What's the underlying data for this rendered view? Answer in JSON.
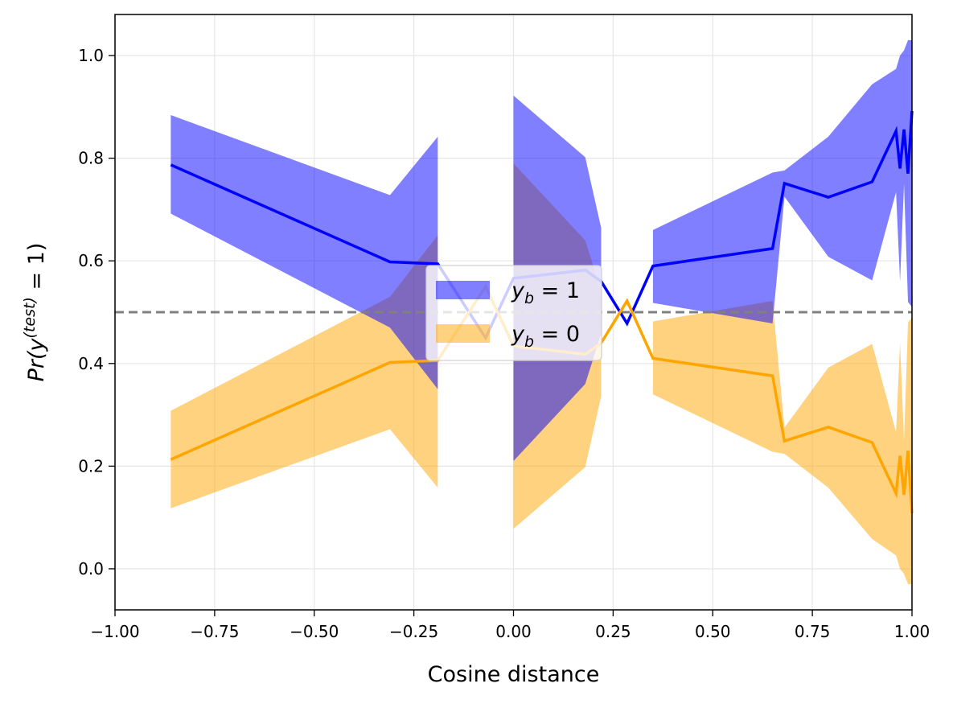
{
  "chart_data": {
    "type": "line",
    "title": "",
    "xlabel": "Cosine distance",
    "ylabel": "Pr(y^(test) = 1)",
    "xlim": [
      -1.0,
      1.0
    ],
    "ylim": [
      -0.08,
      1.08
    ],
    "xticks": [
      "−1.00",
      "−0.75",
      "−0.50",
      "−0.25",
      "0.00",
      "0.25",
      "0.50",
      "0.75",
      "1.00"
    ],
    "yticks": [
      "0.0",
      "0.2",
      "0.4",
      "0.6",
      "0.8",
      "1.0"
    ],
    "grid": true,
    "reference_line": {
      "y": 0.5,
      "style": "dashed",
      "color": "#808080"
    },
    "legend": {
      "placement": "center"
    },
    "series": [
      {
        "name": "y_b = 1",
        "legend_main": "y",
        "legend_sub": "b",
        "legend_rest": " = 1",
        "color": "#0000ff",
        "fill_color": "#8080ff",
        "segments": [
          {
            "x": [
              -0.86,
              -0.31,
              -0.19
            ],
            "y": [
              0.787,
              0.598,
              0.594
            ],
            "lower": [
              0.692,
              0.47,
              0.35
            ],
            "upper": [
              0.884,
              0.728,
              0.842
            ]
          },
          {
            "x": [
              -0.19,
              -0.07,
              0.0
            ],
            "y": [
              0.594,
              0.45,
              0.566
            ],
            "lower": null,
            "upper": null
          },
          {
            "x": [
              0.0,
              0.18,
              0.22
            ],
            "y": [
              0.566,
              0.582,
              0.56
            ],
            "lower": [
              0.21,
              0.36,
              0.458
            ],
            "upper": [
              0.922,
              0.802,
              0.664
            ]
          },
          {
            "x": [
              0.22,
              0.285,
              0.35
            ],
            "y": [
              0.56,
              0.478,
              0.59
            ],
            "lower": null,
            "upper": null
          },
          {
            "x": [
              0.35,
              0.65,
              0.68,
              0.79,
              0.9,
              0.96,
              0.97,
              0.98,
              0.99,
              1.0
            ],
            "y": [
              0.59,
              0.624,
              0.751,
              0.724,
              0.754,
              0.853,
              0.78,
              0.856,
              0.77,
              0.892
            ],
            "lower": [
              0.518,
              0.478,
              0.725,
              0.608,
              0.562,
              0.734,
              0.56,
              0.75,
              0.52,
              0.51
            ],
            "upper": [
              0.66,
              0.772,
              0.776,
              0.842,
              0.944,
              0.974,
              1.0,
              1.01,
              1.03,
              1.03
            ]
          }
        ]
      },
      {
        "name": "y_b = 0",
        "legend_main": "y",
        "legend_sub": "b",
        "legend_rest": " = 0",
        "color": "#ffa500",
        "fill_color": "#ffd280",
        "segments": [
          {
            "x": [
              -0.86,
              -0.31,
              -0.19
            ],
            "y": [
              0.213,
              0.402,
              0.406
            ],
            "lower": [
              0.118,
              0.272,
              0.158
            ],
            "upper": [
              0.308,
              0.53,
              0.65
            ]
          },
          {
            "x": [
              -0.19,
              -0.07,
              0.0
            ],
            "y": [
              0.406,
              0.55,
              0.434
            ],
            "lower": null,
            "upper": null
          },
          {
            "x": [
              0.0,
              0.18,
              0.22
            ],
            "y": [
              0.434,
              0.418,
              0.44
            ],
            "lower": [
              0.078,
              0.198,
              0.336
            ],
            "upper": [
              0.79,
              0.64,
              0.542
            ]
          },
          {
            "x": [
              0.22,
              0.285,
              0.35
            ],
            "y": [
              0.44,
              0.522,
              0.41
            ],
            "lower": null,
            "upper": null
          },
          {
            "x": [
              0.35,
              0.65,
              0.68,
              0.79,
              0.9,
              0.96,
              0.97,
              0.98,
              0.99,
              1.0
            ],
            "y": [
              0.41,
              0.376,
              0.249,
              0.276,
              0.246,
              0.147,
              0.22,
              0.144,
              0.23,
              0.108
            ],
            "lower": [
              0.34,
              0.228,
              0.224,
              0.158,
              0.058,
              0.026,
              0.0,
              -0.01,
              -0.03,
              -0.03
            ],
            "upper": [
              0.482,
              0.522,
              0.275,
              0.392,
              0.438,
              0.266,
              0.44,
              0.25,
              0.48,
              0.49
            ]
          }
        ]
      }
    ]
  }
}
